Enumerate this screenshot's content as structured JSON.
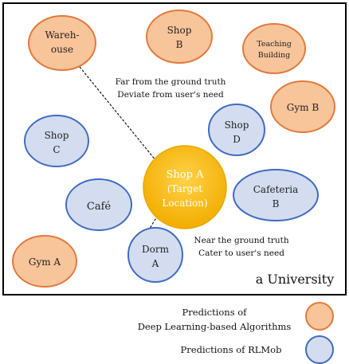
{
  "boundary_label": "a University",
  "colors": {
    "orange_fill": "#f8c49a",
    "orange_stroke": "#e07a3c",
    "blue_fill": "#d3ddef",
    "blue_stroke": "#3f6cbf",
    "target_fill": "#f4b400",
    "target_stroke": "#e8a800"
  },
  "nodes": {
    "warehouse": {
      "line1": "Wareh-",
      "line2": "ouse"
    },
    "shop_b": {
      "line1": "Shop",
      "line2": "B"
    },
    "teaching_building": {
      "line1": "Teaching",
      "line2": "Building"
    },
    "gym_b": {
      "line1": "Gym B"
    },
    "shop_d": {
      "line1": "Shop",
      "line2": "D"
    },
    "shop_c": {
      "line1": "Shop",
      "line2": "C"
    },
    "shop_a": {
      "line1": "Shop A",
      "line2": "(Target",
      "line3": "Location)"
    },
    "cafe": {
      "line1": "Café"
    },
    "cafeteria_b": {
      "line1": "Cafeteria",
      "line2": "B"
    },
    "gym_a": {
      "line1": "Gym A"
    },
    "dorm_a": {
      "line1": "Dorm",
      "line2": "A"
    }
  },
  "annotations": {
    "far": {
      "line1": "Far from the ground truth",
      "line2": "Deviate from user's need"
    },
    "near": {
      "line1": "Near the ground truth",
      "line2": "Cater to user's need"
    }
  },
  "legend": {
    "dl": {
      "line1": "Predictions of",
      "line2": "Deep Learning-based Algorithms"
    },
    "rl": {
      "line1": "Predictions of RLMob"
    }
  }
}
